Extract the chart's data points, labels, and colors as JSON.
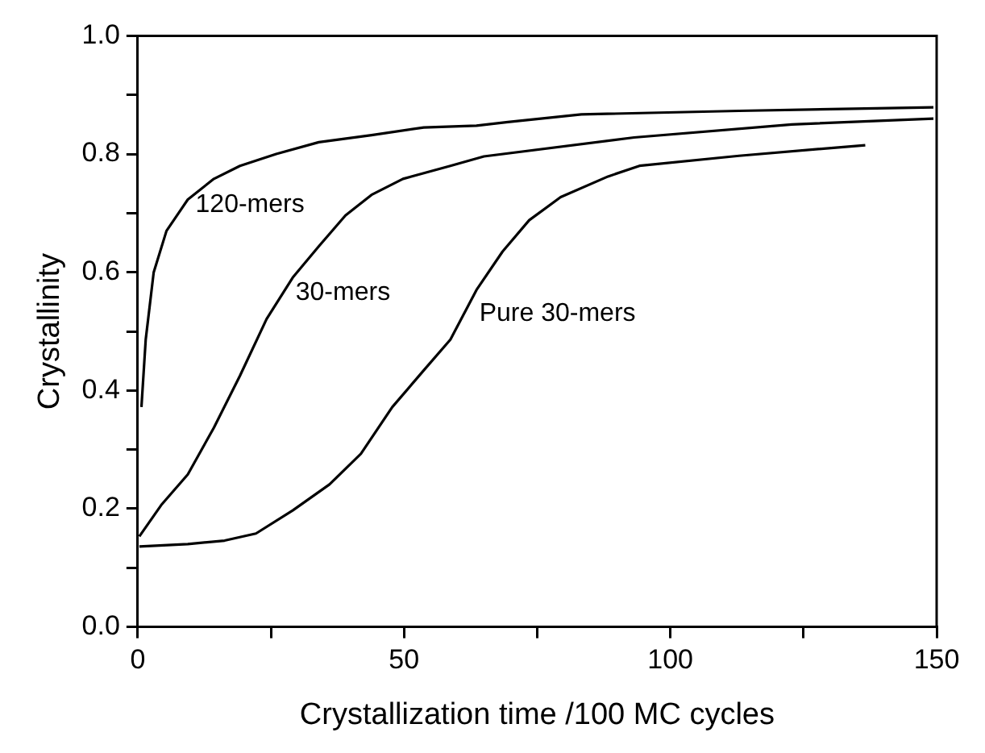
{
  "chart_data": {
    "type": "line",
    "xlabel": "Crystallization time /100 MC cycles",
    "ylabel": "Crystallinity",
    "xlim": [
      0,
      150
    ],
    "ylim": [
      0,
      1
    ],
    "xticks": [
      0,
      {
        "value": 25,
        "label": null
      },
      50,
      {
        "value": 75,
        "label": null
      },
      100,
      {
        "value": 125,
        "label": null
      },
      150
    ],
    "yticks": [
      {
        "value": 0,
        "label": "0.0"
      },
      {
        "value": 0.1,
        "label": null
      },
      {
        "value": 0.2,
        "label": "0.2"
      },
      {
        "value": 0.3,
        "label": null
      },
      {
        "value": 0.4,
        "label": "0.4"
      },
      {
        "value": 0.5,
        "label": null
      },
      {
        "value": 0.6,
        "label": "0.6"
      },
      {
        "value": 0.7,
        "label": null
      },
      {
        "value": 0.8,
        "label": "0.8"
      },
      {
        "value": 0.9,
        "label": null
      },
      {
        "value": 1,
        "label": "1.0"
      }
    ],
    "grid": false,
    "legend": false,
    "marker": "none",
    "line_style": "solid",
    "series": [
      {
        "name": "120-mers",
        "color": "#000000",
        "x": [
          0.7,
          1.5,
          3,
          5.4,
          9.4,
          14.3,
          19.2,
          26,
          34,
          43.9,
          53.7,
          63.6,
          69.5,
          83.3,
          112.9,
          149.4
        ],
        "values": [
          0.372,
          0.486,
          0.6,
          0.67,
          0.723,
          0.758,
          0.78,
          0.8,
          0.82,
          0.832,
          0.845,
          0.848,
          0.854,
          0.867,
          0.873,
          0.879
        ]
      },
      {
        "name": "30-mers",
        "color": "#000000",
        "x": [
          0.3,
          4.4,
          9.4,
          14.3,
          19.2,
          24.2,
          29.1,
          34,
          39,
          43.9,
          49.8,
          58.7,
          65,
          93.2,
          122.8,
          149.4
        ],
        "values": [
          0.153,
          0.206,
          0.258,
          0.337,
          0.425,
          0.521,
          0.591,
          0.644,
          0.696,
          0.731,
          0.758,
          0.78,
          0.796,
          0.828,
          0.85,
          0.86
        ]
      },
      {
        "name": "Pure 30-mers",
        "color": "#000000",
        "x": [
          0.3,
          9.4,
          16.3,
          22.2,
          29.1,
          36,
          41.9,
          47.8,
          53.7,
          58.7,
          63.6,
          68.5,
          73.5,
          79.4,
          88.3,
          94.2,
          112.9,
          136.6
        ],
        "values": [
          0.136,
          0.14,
          0.146,
          0.158,
          0.197,
          0.241,
          0.293,
          0.372,
          0.434,
          0.486,
          0.57,
          0.635,
          0.688,
          0.727,
          0.762,
          0.78,
          0.797,
          0.815
        ]
      }
    ]
  }
}
